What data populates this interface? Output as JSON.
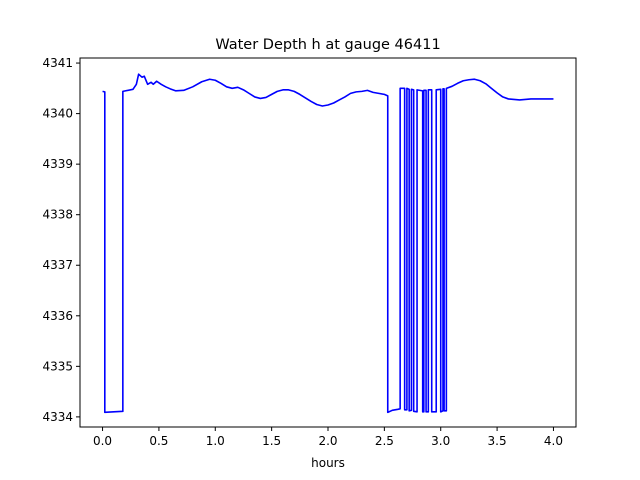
{
  "chart_data": {
    "type": "line",
    "title": "Water Depth h at gauge 46411",
    "xlabel": "hours",
    "ylabel": "",
    "xlim": [
      -0.2,
      4.2
    ],
    "ylim": [
      4333.8,
      4341.1
    ],
    "xticks": [
      0.0,
      0.5,
      1.0,
      1.5,
      2.0,
      2.5,
      3.0,
      3.5,
      4.0
    ],
    "xtick_labels": [
      "0.0",
      "0.5",
      "1.0",
      "1.5",
      "2.0",
      "2.5",
      "3.0",
      "3.5",
      "4.0"
    ],
    "yticks": [
      4334,
      4335,
      4336,
      4337,
      4338,
      4339,
      4340,
      4341
    ],
    "ytick_labels": [
      "4334",
      "4335",
      "4336",
      "4337",
      "4338",
      "4339",
      "4340",
      "4341"
    ],
    "grid": false,
    "series": [
      {
        "color": "#0000ff",
        "x": [
          0.0,
          0.02,
          0.02,
          0.18,
          0.18,
          0.27,
          0.3,
          0.32,
          0.35,
          0.37,
          0.4,
          0.43,
          0.45,
          0.48,
          0.52,
          0.56,
          0.6,
          0.65,
          0.72,
          0.8,
          0.88,
          0.95,
          1.0,
          1.05,
          1.1,
          1.15,
          1.2,
          1.25,
          1.3,
          1.35,
          1.4,
          1.45,
          1.5,
          1.55,
          1.6,
          1.65,
          1.7,
          1.75,
          1.8,
          1.85,
          1.9,
          1.95,
          2.0,
          2.05,
          2.1,
          2.15,
          2.2,
          2.25,
          2.3,
          2.35,
          2.4,
          2.45,
          2.5,
          2.53,
          2.53,
          2.57,
          2.62,
          2.64,
          2.64,
          2.68,
          2.68,
          2.7,
          2.7,
          2.72,
          2.72,
          2.74,
          2.74,
          2.76,
          2.76,
          2.79,
          2.79,
          2.84,
          2.84,
          2.85,
          2.85,
          2.87,
          2.87,
          2.89,
          2.89,
          2.92,
          2.92,
          2.96,
          2.96,
          3.0,
          3.0,
          3.02,
          3.02,
          3.03,
          3.03,
          3.05,
          3.05,
          3.1,
          3.15,
          3.2,
          3.25,
          3.3,
          3.35,
          3.4,
          3.45,
          3.5,
          3.55,
          3.6,
          3.65,
          3.7,
          3.75,
          3.8,
          3.85,
          3.9,
          3.95,
          4.0
        ],
        "y": [
          4340.44,
          4340.43,
          4334.09,
          4334.11,
          4340.44,
          4340.48,
          4340.58,
          4340.78,
          4340.72,
          4340.74,
          4340.58,
          4340.62,
          4340.58,
          4340.64,
          4340.58,
          4340.53,
          4340.49,
          4340.45,
          4340.46,
          4340.53,
          4340.63,
          4340.68,
          4340.66,
          4340.6,
          4340.53,
          4340.5,
          4340.52,
          4340.47,
          4340.4,
          4340.33,
          4340.3,
          4340.32,
          4340.38,
          4340.44,
          4340.47,
          4340.47,
          4340.44,
          4340.38,
          4340.31,
          4340.24,
          4340.18,
          4340.15,
          4340.17,
          4340.21,
          4340.27,
          4340.33,
          4340.4,
          4340.43,
          4340.44,
          4340.46,
          4340.42,
          4340.4,
          4340.38,
          4340.35,
          4334.09,
          4334.13,
          4334.15,
          4334.16,
          4340.5,
          4340.5,
          4334.14,
          4334.14,
          4340.5,
          4340.48,
          4334.12,
          4334.13,
          4340.48,
          4340.47,
          4334.11,
          4334.1,
          4340.47,
          4340.45,
          4334.1,
          4334.1,
          4340.46,
          4340.46,
          4334.1,
          4334.1,
          4340.47,
          4340.47,
          4334.1,
          4334.1,
          4340.47,
          4340.48,
          4334.1,
          4334.12,
          4340.49,
          4340.49,
          4334.12,
          4334.12,
          4340.5,
          4340.54,
          4340.6,
          4340.65,
          4340.67,
          4340.68,
          4340.65,
          4340.59,
          4340.5,
          4340.41,
          4340.33,
          4340.29,
          4340.28,
          4340.27,
          4340.28,
          4340.29,
          4340.29,
          4340.29,
          4340.29,
          4340.29
        ]
      }
    ]
  }
}
